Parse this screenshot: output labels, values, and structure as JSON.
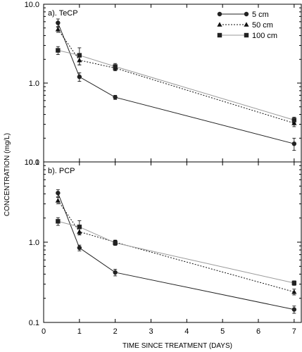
{
  "figure": {
    "ylabel": "CONCENTRATION (mg/L)",
    "xlabel": "TIME SINCE TREATMENT (DAYS)"
  },
  "chart_data": [
    {
      "type": "line",
      "panel_label": "a).  TeCP",
      "yscale": "log",
      "ylim": [
        0.1,
        10.0
      ],
      "xlim": [
        0,
        7.2
      ],
      "yticks": [
        "0.1",
        "1.0",
        "10.0"
      ],
      "xticks": [],
      "legend": {
        "position": "top-right"
      },
      "series": [
        {
          "name": "5 cm",
          "marker": "circle",
          "line": "solid",
          "color": "#222222",
          "x": [
            0.4,
            1,
            2,
            7
          ],
          "y": [
            5.8,
            1.2,
            0.66,
            0.17
          ],
          "err": [
            0.7,
            0.15,
            0.04,
            0.03
          ]
        },
        {
          "name": "50 cm",
          "marker": "triangle",
          "line": "dotted",
          "color": "#111111",
          "x": [
            0.4,
            1,
            2,
            7
          ],
          "y": [
            4.8,
            1.95,
            1.55,
            0.31
          ],
          "err": [
            0.4,
            0.25,
            0.12,
            0.03
          ]
        },
        {
          "name": "100 cm",
          "marker": "square",
          "line": "solid-light",
          "color": "#9a9a9a",
          "x": [
            0.4,
            1,
            2,
            7
          ],
          "y": [
            2.6,
            2.25,
            1.62,
            0.34
          ],
          "err": [
            0.3,
            0.55,
            0.15,
            0.03
          ]
        }
      ]
    },
    {
      "type": "line",
      "panel_label": "b).  PCP",
      "yscale": "log",
      "ylim": [
        0.1,
        10.0
      ],
      "xlim": [
        0,
        7.2
      ],
      "yticks": [
        "0.1",
        "1.0",
        "10.0"
      ],
      "xticks": [
        "0",
        "1",
        "2",
        "3",
        "4",
        "5",
        "6",
        "7"
      ],
      "series": [
        {
          "name": "5 cm",
          "marker": "circle",
          "line": "solid",
          "color": "#222222",
          "x": [
            0.4,
            1,
            2,
            7
          ],
          "y": [
            4.1,
            0.85,
            0.42,
            0.145
          ],
          "err": [
            0.4,
            0.07,
            0.04,
            0.015
          ]
        },
        {
          "name": "50 cm",
          "marker": "triangle",
          "line": "dotted",
          "color": "#111111",
          "x": [
            0.4,
            1,
            2,
            7
          ],
          "y": [
            3.3,
            1.35,
            1.0,
            0.24
          ],
          "err": [
            0.3,
            0.12,
            0.06,
            0.02
          ]
        },
        {
          "name": "100 cm",
          "marker": "square",
          "line": "solid-light",
          "color": "#9a9a9a",
          "x": [
            0.4,
            1,
            2,
            7
          ],
          "y": [
            1.82,
            1.55,
            0.98,
            0.31
          ],
          "err": [
            0.2,
            0.3,
            0.07,
            0.02
          ]
        }
      ]
    }
  ]
}
